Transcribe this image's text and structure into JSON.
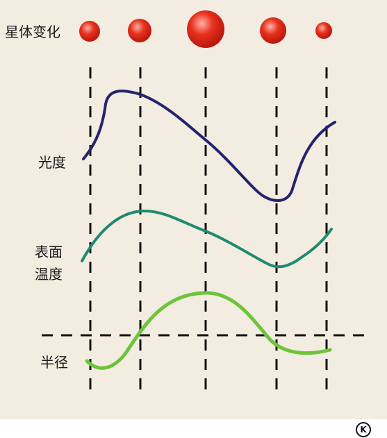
{
  "labels": {
    "title": "星体变化",
    "brightness": "光度",
    "surface_temp_line1": "表面",
    "surface_temp_line2": "温度",
    "radius": "半径"
  },
  "badge": "K",
  "colors": {
    "background": "#f2ece1",
    "star": "#e0261a",
    "brightness_curve": "#23246e",
    "temperature_curve": "#1f8a6f",
    "radius_curve": "#6cc439",
    "dashed_lines": "#111111"
  },
  "stars": [
    {
      "phase": 1,
      "relative_size": "small"
    },
    {
      "phase": 2,
      "relative_size": "medium"
    },
    {
      "phase": 3,
      "relative_size": "largest"
    },
    {
      "phase": 4,
      "relative_size": "medium"
    },
    {
      "phase": 5,
      "relative_size": "smallest"
    }
  ]
}
